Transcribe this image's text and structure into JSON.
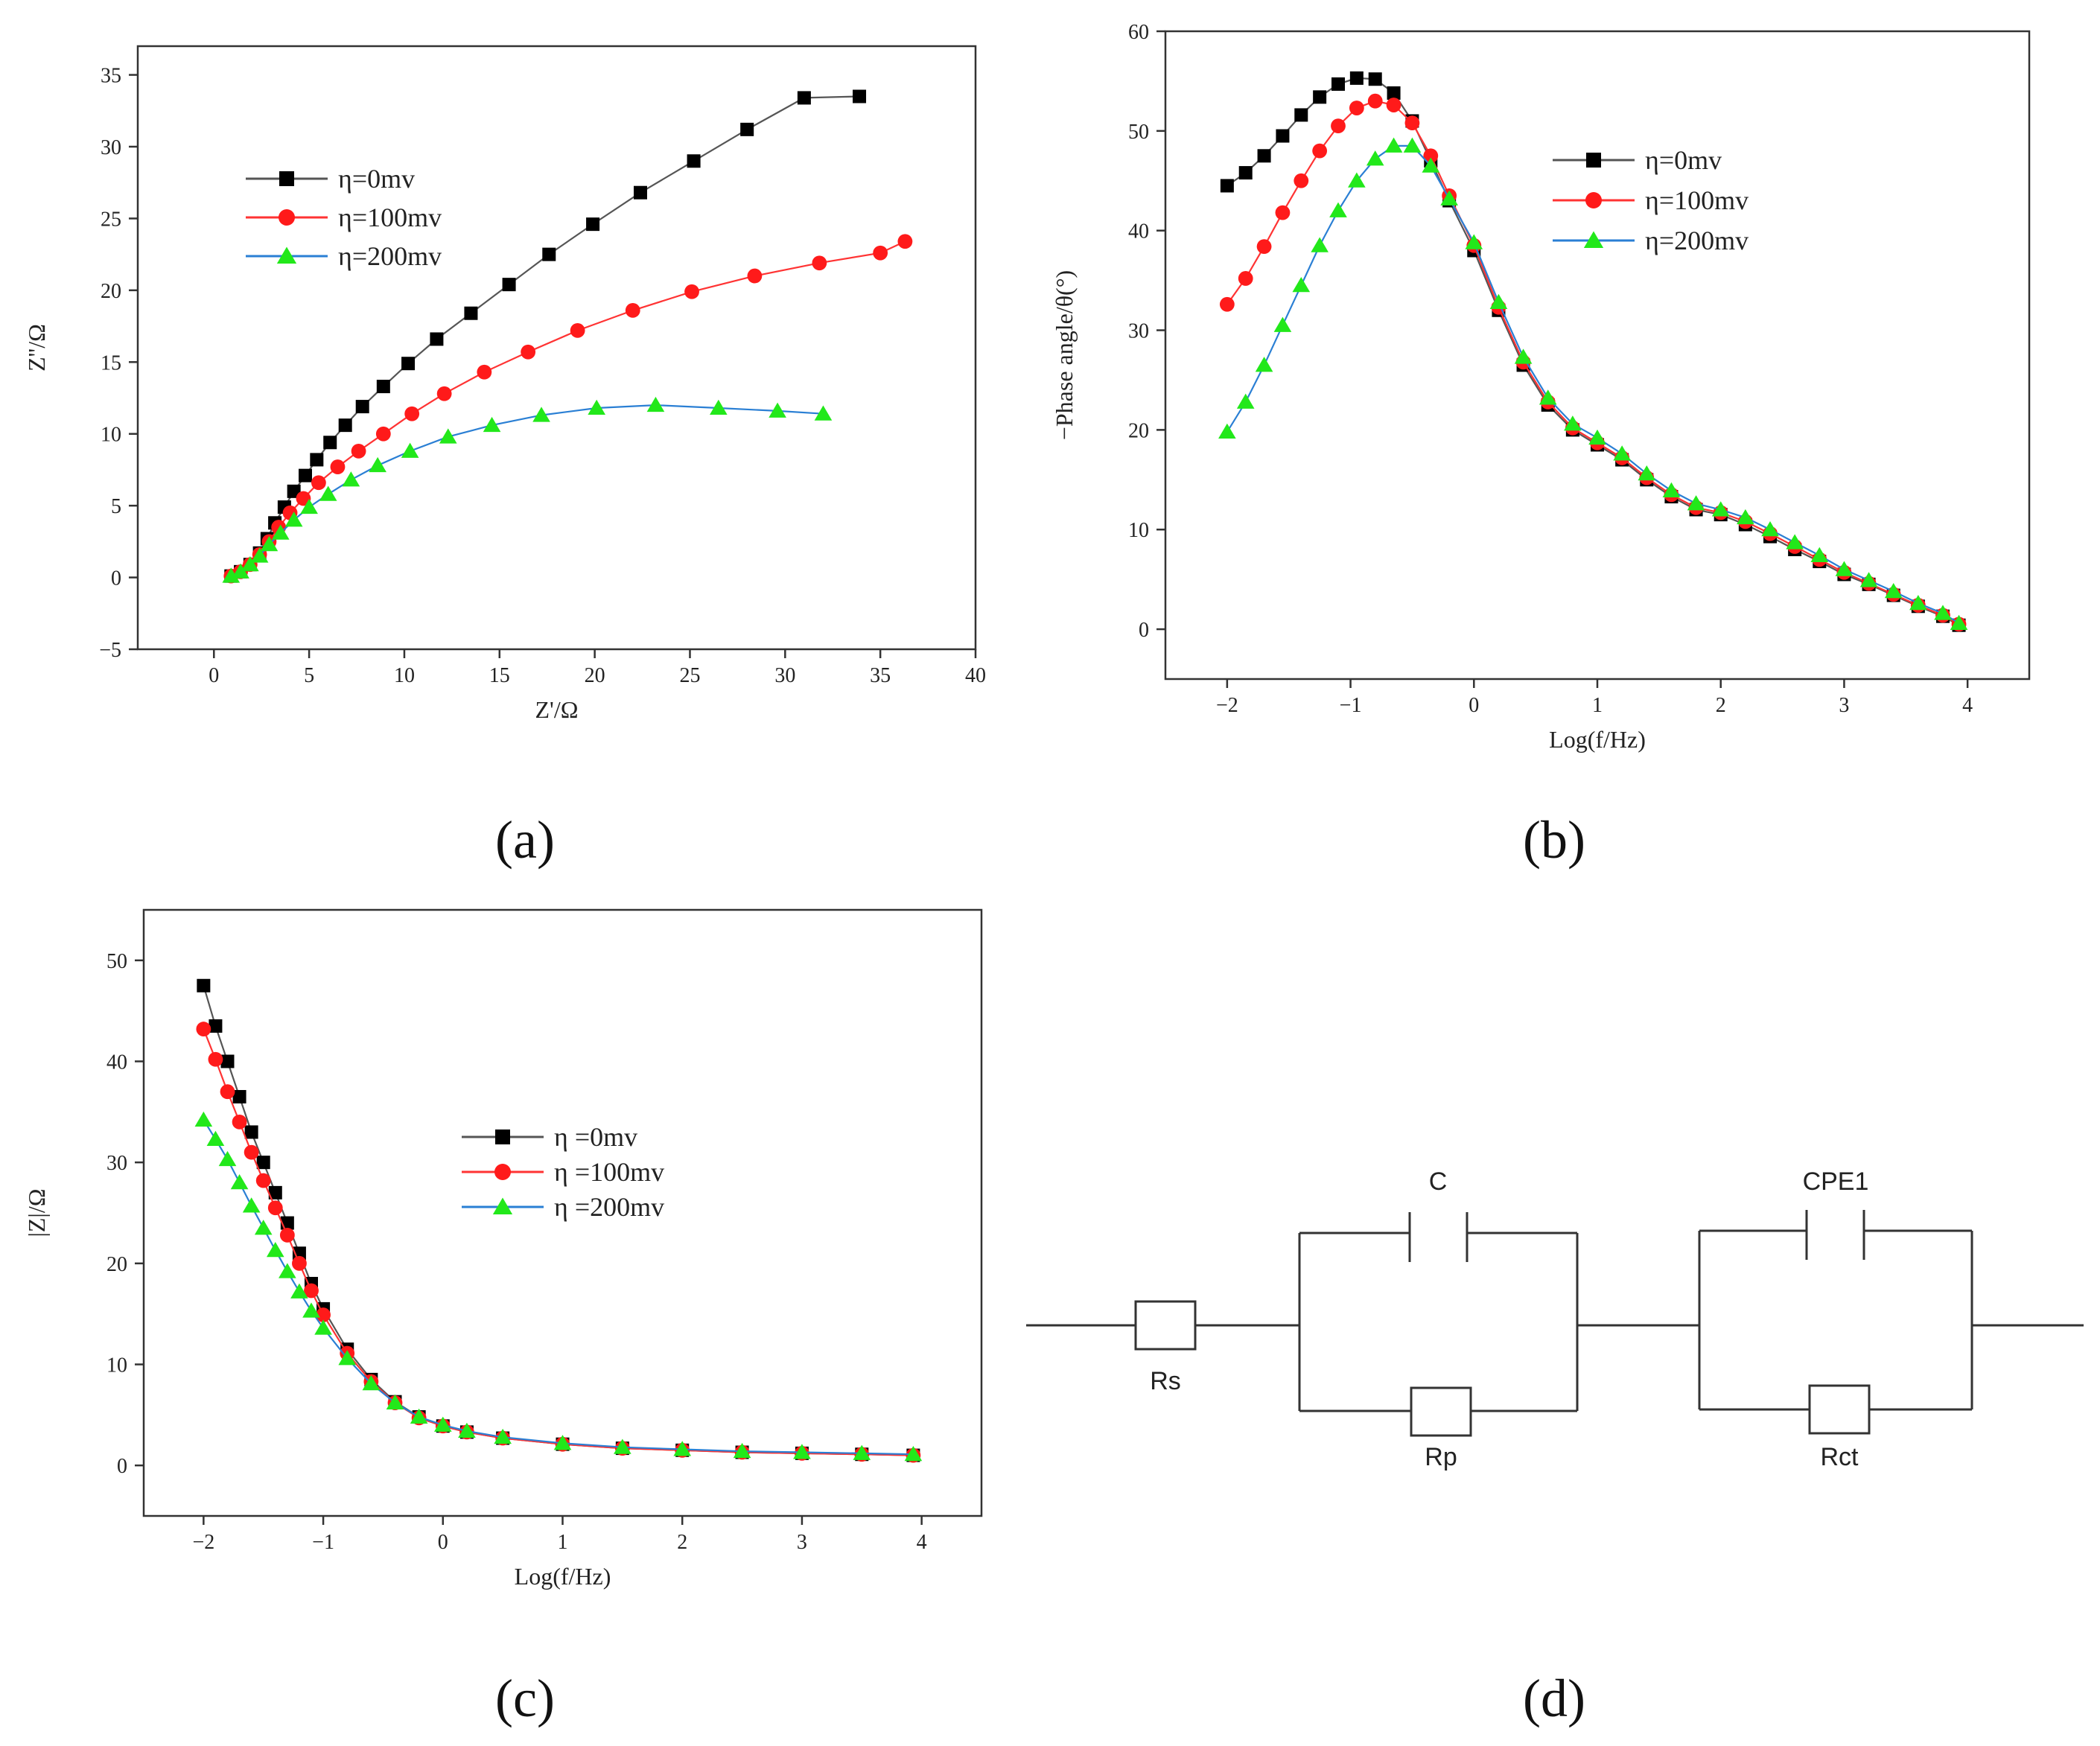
{
  "panels": {
    "a": "(a)",
    "b": "(b)",
    "c": "(c)",
    "d": "(d)"
  },
  "colors": {
    "series0": "#000000",
    "series0_line": "#555555",
    "series1": "#ff1a1a",
    "series1_line": "#ff3333",
    "series2": "#22e81a",
    "series2_line": "#2a7fd4"
  },
  "circuit": {
    "labels": {
      "rs": "Rs",
      "c": "C",
      "rp": "Rp",
      "cpe1": "CPE1",
      "rct": "Rct"
    }
  },
  "chart_data": [
    {
      "id": "a",
      "type": "scatter",
      "title": "",
      "xlabel": "Z'/Ω",
      "ylabel": "Z''/Ω",
      "xlim": [
        -4,
        40
      ],
      "ylim": [
        -5,
        37
      ],
      "xticks": [
        0,
        5,
        10,
        15,
        20,
        25,
        30,
        35,
        40
      ],
      "yticks": [
        -5,
        0,
        5,
        10,
        15,
        20,
        25,
        30,
        35
      ],
      "legend_position": "upper-left",
      "series": [
        {
          "name": "η=0mv",
          "marker": "square",
          "x": [
            0.9,
            1.4,
            1.9,
            2.4,
            2.8,
            3.2,
            3.7,
            4.2,
            4.8,
            5.4,
            6.1,
            6.9,
            7.8,
            8.9,
            10.2,
            11.7,
            13.5,
            15.5,
            17.6,
            19.9,
            22.4,
            25.2,
            28.0,
            31.0,
            33.9
          ],
          "y": [
            0.1,
            0.4,
            0.9,
            1.7,
            2.7,
            3.8,
            4.9,
            6.0,
            7.1,
            8.2,
            9.4,
            10.6,
            11.9,
            13.3,
            14.9,
            16.6,
            18.4,
            20.4,
            22.5,
            24.6,
            26.8,
            29.0,
            31.2,
            33.4,
            33.5
          ]
        },
        {
          "name": "η=100mv",
          "marker": "circle",
          "x": [
            0.9,
            1.4,
            1.9,
            2.4,
            2.9,
            3.4,
            4.0,
            4.7,
            5.5,
            6.5,
            7.6,
            8.9,
            10.4,
            12.1,
            14.2,
            16.5,
            19.1,
            22.0,
            25.1,
            28.4,
            31.8,
            35.0,
            36.3
          ],
          "y": [
            0.1,
            0.4,
            0.9,
            1.6,
            2.5,
            3.5,
            4.5,
            5.5,
            6.6,
            7.7,
            8.8,
            10.0,
            11.4,
            12.8,
            14.3,
            15.7,
            17.2,
            18.6,
            19.9,
            21.0,
            21.9,
            22.6,
            23.4
          ]
        },
        {
          "name": "η=200mv",
          "marker": "triangle",
          "x": [
            0.9,
            1.4,
            1.9,
            2.4,
            2.9,
            3.5,
            4.2,
            5.0,
            6.0,
            7.2,
            8.6,
            10.3,
            12.3,
            14.6,
            17.2,
            20.1,
            23.2,
            26.5,
            29.6,
            32.0
          ],
          "y": [
            0.1,
            0.4,
            0.9,
            1.5,
            2.3,
            3.1,
            4.0,
            4.9,
            5.8,
            6.8,
            7.8,
            8.8,
            9.8,
            10.6,
            11.3,
            11.8,
            12.0,
            11.8,
            11.6,
            11.4
          ]
        }
      ]
    },
    {
      "id": "b",
      "type": "scatter",
      "title": "",
      "xlabel": "Log(f/Hz)",
      "ylabel": "−Phase angle/θ(°)",
      "xlim": [
        -2.5,
        4.5
      ],
      "ylim": [
        -5,
        60
      ],
      "xticks": [
        -2,
        -1,
        0,
        1,
        2,
        3,
        4
      ],
      "yticks": [
        0,
        10,
        20,
        30,
        40,
        50,
        60
      ],
      "legend_position": "upper-right",
      "series": [
        {
          "name": "η=0mv",
          "marker": "square",
          "x": [
            -2.0,
            -1.85,
            -1.7,
            -1.55,
            -1.4,
            -1.25,
            -1.1,
            -0.95,
            -0.8,
            -0.65,
            -0.5,
            -0.35,
            -0.2,
            0.0,
            0.2,
            0.4,
            0.6,
            0.8,
            1.0,
            1.2,
            1.4,
            1.6,
            1.8,
            2.0,
            2.2,
            2.4,
            2.6,
            2.8,
            3.0,
            3.2,
            3.4,
            3.6,
            3.8,
            3.93
          ],
          "y": [
            44.5,
            45.8,
            47.5,
            49.5,
            51.6,
            53.4,
            54.7,
            55.3,
            55.2,
            53.8,
            51.0,
            47.0,
            43.0,
            38.0,
            32.0,
            26.5,
            22.5,
            20.0,
            18.5,
            17.0,
            15.0,
            13.3,
            12.0,
            11.5,
            10.5,
            9.3,
            8.0,
            6.8,
            5.5,
            4.5,
            3.4,
            2.3,
            1.3,
            0.4
          ]
        },
        {
          "name": "η=100mv",
          "marker": "circle",
          "x": [
            -2.0,
            -1.85,
            -1.7,
            -1.55,
            -1.4,
            -1.25,
            -1.1,
            -0.95,
            -0.8,
            -0.65,
            -0.5,
            -0.35,
            -0.2,
            0.0,
            0.2,
            0.4,
            0.6,
            0.8,
            1.0,
            1.2,
            1.4,
            1.6,
            1.8,
            2.0,
            2.2,
            2.4,
            2.6,
            2.8,
            3.0,
            3.2,
            3.4,
            3.6,
            3.8,
            3.93
          ],
          "y": [
            32.6,
            35.2,
            38.4,
            41.8,
            45.0,
            48.0,
            50.5,
            52.3,
            53.0,
            52.6,
            50.8,
            47.5,
            43.5,
            38.5,
            32.3,
            26.8,
            22.8,
            20.2,
            18.7,
            17.2,
            15.2,
            13.5,
            12.2,
            11.7,
            10.8,
            9.6,
            8.3,
            7.0,
            5.7,
            4.6,
            3.5,
            2.4,
            1.4,
            0.5
          ]
        },
        {
          "name": "η=200mv",
          "marker": "triangle",
          "x": [
            -2.0,
            -1.85,
            -1.7,
            -1.55,
            -1.4,
            -1.25,
            -1.1,
            -0.95,
            -0.8,
            -0.65,
            -0.5,
            -0.35,
            -0.2,
            0.0,
            0.2,
            0.4,
            0.6,
            0.8,
            1.0,
            1.2,
            1.4,
            1.6,
            1.8,
            2.0,
            2.2,
            2.4,
            2.6,
            2.8,
            3.0,
            3.2,
            3.4,
            3.6,
            3.8,
            3.93
          ],
          "y": [
            19.8,
            22.8,
            26.5,
            30.5,
            34.5,
            38.5,
            42.0,
            45.0,
            47.2,
            48.5,
            48.5,
            46.5,
            43.2,
            38.8,
            32.8,
            27.3,
            23.2,
            20.6,
            19.2,
            17.6,
            15.6,
            13.9,
            12.6,
            12.0,
            11.2,
            10.0,
            8.7,
            7.4,
            6.0,
            4.9,
            3.8,
            2.6,
            1.6,
            0.6
          ]
        }
      ]
    },
    {
      "id": "c",
      "type": "scatter",
      "title": "",
      "xlabel": "Log(f/Hz)",
      "ylabel": "|Z|/Ω",
      "xlim": [
        -2.5,
        4.5
      ],
      "ylim": [
        -5,
        55
      ],
      "xticks": [
        -2,
        -1,
        0,
        1,
        2,
        3,
        4
      ],
      "yticks": [
        0,
        10,
        20,
        30,
        40,
        50
      ],
      "legend_position": "center-right",
      "series": [
        {
          "name": "η =0mv",
          "marker": "square",
          "x": [
            -2.0,
            -1.9,
            -1.8,
            -1.7,
            -1.6,
            -1.5,
            -1.4,
            -1.3,
            -1.2,
            -1.1,
            -1.0,
            -0.8,
            -0.6,
            -0.4,
            -0.2,
            0.0,
            0.2,
            0.5,
            1.0,
            1.5,
            2.0,
            2.5,
            3.0,
            3.5,
            3.93
          ],
          "y": [
            47.5,
            43.5,
            40.0,
            36.5,
            33.0,
            30.0,
            27.0,
            24.0,
            21.0,
            18.0,
            15.5,
            11.5,
            8.5,
            6.3,
            4.8,
            3.9,
            3.3,
            2.7,
            2.1,
            1.7,
            1.5,
            1.3,
            1.2,
            1.1,
            1.0
          ]
        },
        {
          "name": "η =100mv",
          "marker": "circle",
          "x": [
            -2.0,
            -1.9,
            -1.8,
            -1.7,
            -1.6,
            -1.5,
            -1.4,
            -1.3,
            -1.2,
            -1.1,
            -1.0,
            -0.8,
            -0.6,
            -0.4,
            -0.2,
            0.0,
            0.2,
            0.5,
            1.0,
            1.5,
            2.0,
            2.5,
            3.0,
            3.5,
            3.93
          ],
          "y": [
            43.2,
            40.2,
            37.0,
            34.0,
            31.0,
            28.2,
            25.5,
            22.8,
            20.0,
            17.3,
            14.9,
            11.1,
            8.3,
            6.2,
            4.7,
            3.9,
            3.3,
            2.7,
            2.1,
            1.7,
            1.5,
            1.3,
            1.2,
            1.1,
            1.0
          ]
        },
        {
          "name": "η =200mv",
          "marker": "triangle",
          "x": [
            -2.0,
            -1.9,
            -1.8,
            -1.7,
            -1.6,
            -1.5,
            -1.4,
            -1.3,
            -1.2,
            -1.1,
            -1.0,
            -0.8,
            -0.6,
            -0.4,
            -0.2,
            0.0,
            0.2,
            0.5,
            1.0,
            1.5,
            2.0,
            2.5,
            3.0,
            3.5,
            3.93
          ],
          "y": [
            34.2,
            32.3,
            30.3,
            28.0,
            25.7,
            23.5,
            21.3,
            19.2,
            17.2,
            15.3,
            13.6,
            10.6,
            8.1,
            6.2,
            4.8,
            4.0,
            3.4,
            2.8,
            2.2,
            1.8,
            1.6,
            1.4,
            1.3,
            1.2,
            1.1
          ]
        }
      ]
    }
  ]
}
